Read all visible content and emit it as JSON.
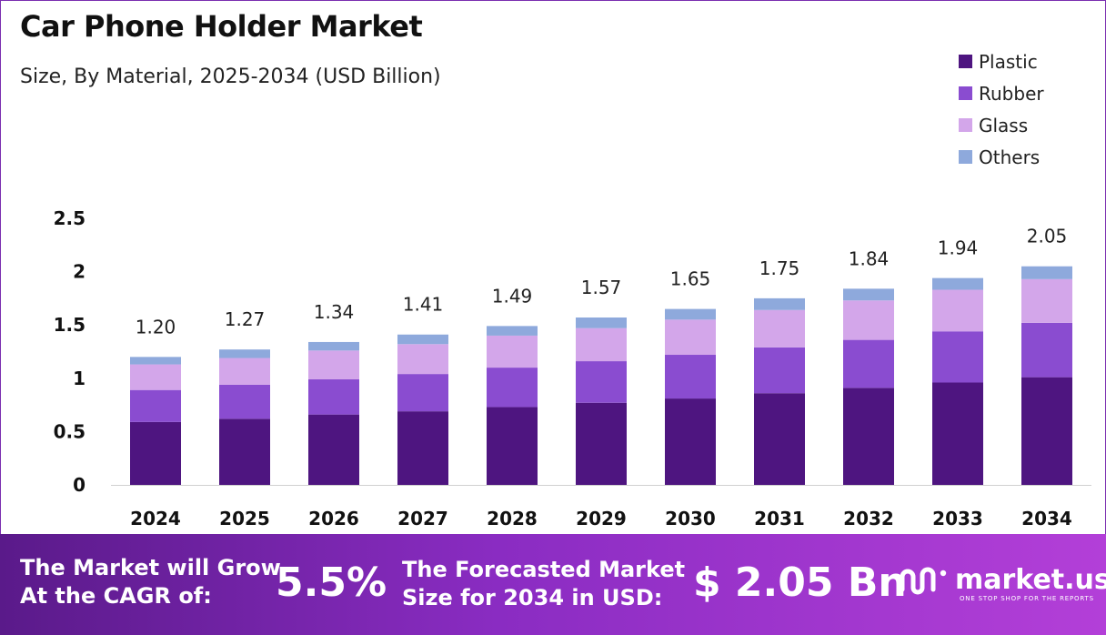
{
  "chart_data": {
    "type": "stacked_bar",
    "title": "Car Phone Holder Market",
    "subtitle": "Size, By Material, 2025-2034 (USD Billion)",
    "categories": [
      "2024",
      "2025",
      "2026",
      "2027",
      "2028",
      "2029",
      "2030",
      "2031",
      "2032",
      "2033",
      "2034"
    ],
    "series": [
      {
        "name": "Plastic",
        "color": "#4e1580",
        "values": [
          0.59,
          0.62,
          0.66,
          0.69,
          0.73,
          0.77,
          0.81,
          0.86,
          0.91,
          0.96,
          1.01
        ]
      },
      {
        "name": "Rubber",
        "color": "#8a4cd0",
        "values": [
          0.3,
          0.32,
          0.33,
          0.35,
          0.37,
          0.39,
          0.41,
          0.43,
          0.45,
          0.48,
          0.51
        ]
      },
      {
        "name": "Glass",
        "color": "#d3a6ea",
        "values": [
          0.24,
          0.25,
          0.27,
          0.28,
          0.3,
          0.31,
          0.33,
          0.35,
          0.37,
          0.39,
          0.41
        ]
      },
      {
        "name": "Others",
        "color": "#8ea9dc",
        "values": [
          0.07,
          0.08,
          0.08,
          0.09,
          0.09,
          0.1,
          0.1,
          0.11,
          0.11,
          0.11,
          0.12
        ]
      }
    ],
    "totals": [
      "1.20",
      "1.27",
      "1.34",
      "1.41",
      "1.49",
      "1.57",
      "1.65",
      "1.75",
      "1.84",
      "1.94",
      "2.05"
    ],
    "yticks": [
      "0",
      "0.5",
      "1",
      "1.5",
      "2",
      "2.5"
    ],
    "ylim": [
      0,
      2.5
    ],
    "legend_position": "top-right"
  },
  "footer": {
    "cagr_line1": "The Market will Grow",
    "cagr_line2": "At the CAGR of:",
    "cagr_value": "5.5%",
    "forecast_line1": "The Forecasted Market",
    "forecast_line2": "Size for 2034 in USD:",
    "forecast_value": "$ 2.05 Bn",
    "brand_name": "market.us",
    "brand_tagline": "ONE STOP SHOP FOR THE REPORTS"
  }
}
